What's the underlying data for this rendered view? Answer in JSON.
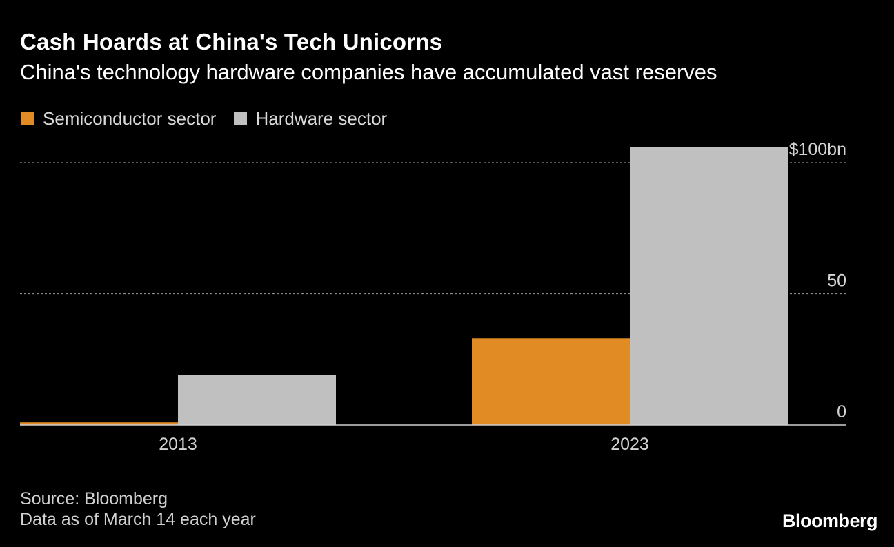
{
  "title": "Cash Hoards at China's Tech Unicorns",
  "subtitle": "China's technology hardware companies have accumulated vast reserves",
  "legend": [
    {
      "label": "Semiconductor sector",
      "color": "#e08b24"
    },
    {
      "label": "Hardware sector",
      "color": "#c0c0c0"
    }
  ],
  "chart_data": {
    "type": "bar",
    "categories": [
      "2013",
      "2023"
    ],
    "series": [
      {
        "name": "Semiconductor sector",
        "values": [
          1,
          33
        ],
        "color": "#e08b24"
      },
      {
        "name": "Hardware sector",
        "values": [
          19,
          106
        ],
        "color": "#c0c0c0"
      }
    ],
    "ylim": [
      0,
      100
    ],
    "yticks": [
      {
        "value": 0,
        "label": "0"
      },
      {
        "value": 50,
        "label": "50"
      },
      {
        "value": 100,
        "label": "$100bn"
      }
    ],
    "grid": true,
    "y_axis_side": "right",
    "legend_position": "top-left",
    "xlabel": "",
    "ylabel": ""
  },
  "footer": {
    "source": "Source: Bloomberg",
    "note": "Data as of March 14 each year"
  },
  "brand": "Bloomberg"
}
